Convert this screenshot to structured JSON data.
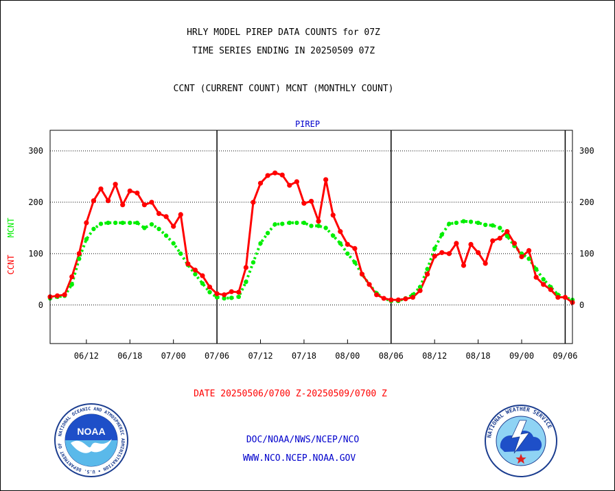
{
  "header": {
    "title_line1": "HRLY MODEL PIREP DATA COUNTS for 07Z",
    "title_line2": "TIME SERIES ENDING IN 20250509 07Z",
    "subtitle": "CCNT (CURRENT COUNT) MCNT (MONTHLY COUNT)"
  },
  "footer": {
    "date_range": "DATE 20250506/0700 Z-20250509/0700 Z",
    "org": "DOC/NOAA/NWS/NCEP/NCO",
    "url": "WWW.NCO.NCEP.NOAA.GOV"
  },
  "logos": {
    "noaa_text": "NOAA",
    "noaa_ring": "NATIONAL OCEANIC AND ATMOSPHERIC ADMINISTRATION • U.S. DEPARTMENT OF COMMERCE",
    "nws_ring": "NATIONAL WEATHER SERVICE"
  },
  "chart_data": {
    "type": "line",
    "title": "PIREP",
    "ylabel_ccnt": "CCNT",
    "ylabel_mcnt": "MCNT",
    "x_unit": "hours since 05/06 07Z",
    "xlim": [
      0,
      72
    ],
    "ylim": [
      -75,
      340
    ],
    "yticks": [
      0,
      100,
      200,
      300
    ],
    "xticks": [
      {
        "x": 5,
        "label": "06/12"
      },
      {
        "x": 11,
        "label": "06/18"
      },
      {
        "x": 17,
        "label": "07/00"
      },
      {
        "x": 23,
        "label": "07/06"
      },
      {
        "x": 29,
        "label": "07/12"
      },
      {
        "x": 35,
        "label": "07/18"
      },
      {
        "x": 41,
        "label": "08/00"
      },
      {
        "x": 47,
        "label": "08/06"
      },
      {
        "x": 53,
        "label": "08/12"
      },
      {
        "x": 59,
        "label": "08/18"
      },
      {
        "x": 65,
        "label": "09/00"
      },
      {
        "x": 71,
        "label": "09/06"
      }
    ],
    "day_boundaries": [
      23,
      47,
      71
    ],
    "grid": "horizontal dotted",
    "colors": {
      "ccnt": "#ff0000",
      "mcnt": "#00ee00",
      "title": "#0000cc",
      "footer_org": "#0000cc",
      "footer_date": "#ff0000"
    },
    "series": [
      {
        "name": "CCNT",
        "style": "solid",
        "values": [
          16,
          18,
          20,
          55,
          100,
          160,
          203,
          226,
          203,
          235,
          195,
          222,
          218,
          195,
          200,
          178,
          172,
          153,
          176,
          80,
          68,
          57,
          35,
          22,
          20,
          26,
          25,
          73,
          200,
          237,
          252,
          257,
          253,
          233,
          240,
          198,
          202,
          163,
          244,
          175,
          143,
          118,
          110,
          60,
          40,
          20,
          13,
          10,
          10,
          12,
          15,
          28,
          60,
          95,
          102,
          100,
          120,
          77,
          118,
          102,
          81,
          125,
          130,
          143,
          120,
          94,
          106,
          54,
          40,
          30,
          15,
          15,
          5
        ]
      },
      {
        "name": "MCNT",
        "style": "dotted",
        "values": [
          13,
          16,
          18,
          40,
          90,
          128,
          148,
          158,
          160,
          160,
          160,
          160,
          160,
          150,
          157,
          148,
          135,
          120,
          100,
          78,
          60,
          42,
          25,
          15,
          13,
          14,
          16,
          45,
          83,
          120,
          140,
          157,
          158,
          160,
          160,
          160,
          154,
          154,
          150,
          135,
          120,
          100,
          83,
          60,
          40,
          23,
          13,
          8,
          8,
          13,
          20,
          35,
          70,
          110,
          137,
          158,
          160,
          163,
          162,
          160,
          156,
          155,
          150,
          134,
          115,
          100,
          90,
          70,
          50,
          35,
          20,
          15,
          10
        ]
      }
    ]
  }
}
